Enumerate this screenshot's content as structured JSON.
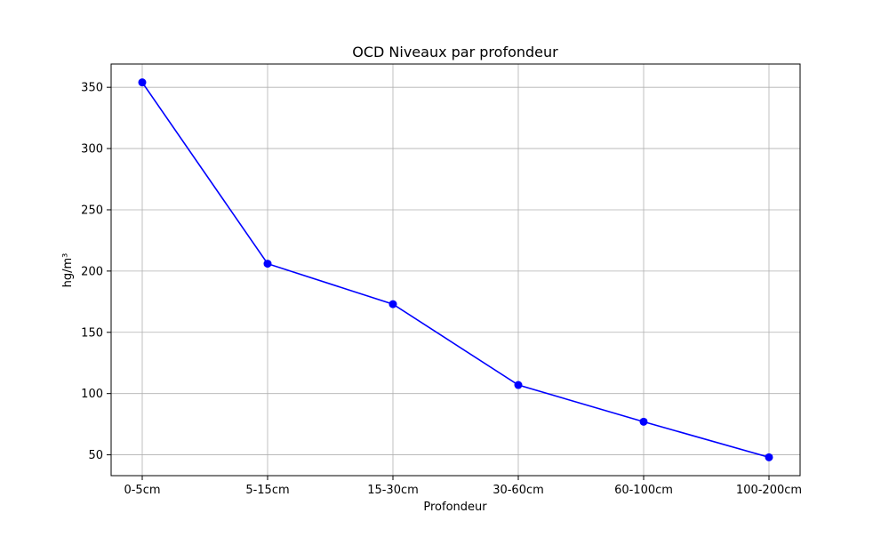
{
  "chart_data": {
    "type": "line",
    "title": "OCD Niveaux par profondeur",
    "xlabel": "Profondeur",
    "ylabel": "hg/m³",
    "categories": [
      "0-5cm",
      "5-15cm",
      "15-30cm",
      "30-60cm",
      "60-100cm",
      "100-200cm"
    ],
    "series": [
      {
        "values": [
          354,
          206,
          173,
          107,
          77,
          48
        ],
        "color": "#0000ff",
        "marker": "circle"
      }
    ],
    "ylim": [
      33,
      369
    ],
    "yticks": [
      50,
      100,
      150,
      200,
      250,
      300,
      350
    ],
    "grid": true,
    "legend": "none"
  }
}
